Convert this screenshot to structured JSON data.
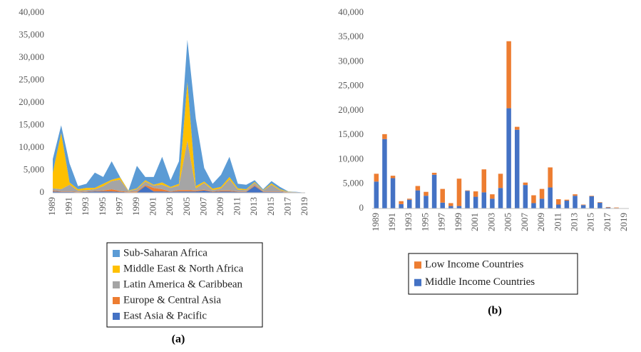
{
  "chart_data": [
    {
      "type": "area",
      "caption": "(a)",
      "categories": [
        "1989",
        null,
        "1991",
        null,
        "1993",
        null,
        "1995",
        null,
        "1997",
        null,
        "1999",
        null,
        "2001",
        null,
        "2003",
        null,
        "2005",
        null,
        "2007",
        null,
        "2009",
        null,
        "2011",
        null,
        "2013",
        null,
        "2015",
        null,
        "2017",
        null,
        "2019"
      ],
      "ylim": [
        0,
        40000
      ],
      "yticks": [
        0,
        {
          "value": 5000,
          "label": "5,000"
        },
        {
          "value": 10000,
          "label": "10,000"
        },
        {
          "value": 15000,
          "label": "15,000"
        },
        {
          "value": 20000,
          "label": "20,000"
        },
        {
          "value": 25000,
          "label": "25,000"
        },
        {
          "value": 30000,
          "label": "30,000"
        },
        {
          "value": 35000,
          "label": "35,000"
        },
        {
          "value": 40000,
          "label": "40,000"
        }
      ],
      "series": [
        {
          "name": "East Asia & Pacific",
          "color": "#4472c4",
          "values": [
            300,
            200,
            200,
            100,
            200,
            300,
            300,
            300,
            200,
            100,
            100,
            1500,
            300,
            300,
            200,
            300,
            300,
            300,
            500,
            200,
            300,
            300,
            200,
            200,
            1500,
            200,
            200,
            200,
            50,
            50,
            0
          ]
        },
        {
          "name": "Europe & Central Asia",
          "color": "#ed7d31",
          "values": [
            200,
            100,
            100,
            100,
            100,
            100,
            200,
            500,
            200,
            100,
            200,
            200,
            800,
            500,
            100,
            300,
            300,
            200,
            200,
            100,
            200,
            200,
            100,
            100,
            200,
            100,
            100,
            100,
            50,
            50,
            0
          ]
        },
        {
          "name": "Latin America & Caribbean",
          "color": "#a5a5a5",
          "values": [
            500,
            500,
            1500,
            300,
            300,
            400,
            1000,
            1800,
            2500,
            200,
            500,
            800,
            500,
            1000,
            800,
            1000,
            11000,
            500,
            1500,
            300,
            500,
            2500,
            400,
            300,
            500,
            200,
            1500,
            300,
            100,
            50,
            0
          ]
        },
        {
          "name": "Middle East & North Africa",
          "color": "#ffc000",
          "values": [
            3500,
            12500,
            500,
            300,
            500,
            300,
            500,
            300,
            500,
            100,
            200,
            300,
            200,
            500,
            200,
            400,
            13000,
            500,
            300,
            300,
            300,
            500,
            300,
            200,
            200,
            100,
            300,
            200,
            50,
            0,
            0
          ]
        },
        {
          "name": "Sub-Saharan Africa",
          "color": "#5b9bd5",
          "values": [
            3000,
            1700,
            4200,
            700,
            900,
            3400,
            1500,
            4100,
            100,
            0,
            5000,
            700,
            1700,
            5700,
            1500,
            5000,
            9400,
            15000,
            3000,
            1100,
            2700,
            4500,
            1000,
            1000,
            400,
            200,
            500,
            500,
            50,
            50,
            0
          ]
        }
      ]
    },
    {
      "type": "bar",
      "caption": "(b)",
      "categories": [
        "1989",
        null,
        "1991",
        null,
        "1993",
        null,
        "1995",
        null,
        "1997",
        null,
        "1999",
        null,
        "2001",
        null,
        "2003",
        null,
        "2005",
        null,
        "2007",
        null,
        "2009",
        null,
        "2011",
        null,
        "2013",
        null,
        "2015",
        null,
        "2017",
        null,
        "2019"
      ],
      "ylim": [
        0,
        40000
      ],
      "yticks": [
        0,
        {
          "value": 5000,
          "label": "5,000"
        },
        {
          "value": 10000,
          "label": "10,000"
        },
        {
          "value": 15000,
          "label": "15,000"
        },
        {
          "value": 20000,
          "label": "20,000"
        },
        {
          "value": 25000,
          "label": "25,000"
        },
        {
          "value": 30000,
          "label": "30,000"
        },
        {
          "value": 35000,
          "label": "35,000"
        },
        {
          "value": 40000,
          "label": "40,000"
        }
      ],
      "series": [
        {
          "name": "Middle Income Countries",
          "color": "#4472c4",
          "values": [
            5500,
            14200,
            6200,
            900,
            1800,
            3700,
            2600,
            6900,
            1200,
            500,
            500,
            3600,
            2400,
            3300,
            2000,
            4200,
            20500,
            16100,
            4800,
            1100,
            2000,
            4300,
            800,
            1600,
            2600,
            700,
            2500,
            1200,
            200,
            100,
            0
          ]
        },
        {
          "name": "Low Income Countries",
          "color": "#ed7d31",
          "values": [
            1600,
            1000,
            500,
            600,
            200,
            900,
            800,
            400,
            2800,
            600,
            5600,
            100,
            1100,
            4700,
            900,
            2900,
            13700,
            600,
            500,
            1600,
            2000,
            4100,
            1100,
            200,
            300,
            100,
            100,
            100,
            100,
            100,
            0
          ]
        }
      ]
    }
  ]
}
